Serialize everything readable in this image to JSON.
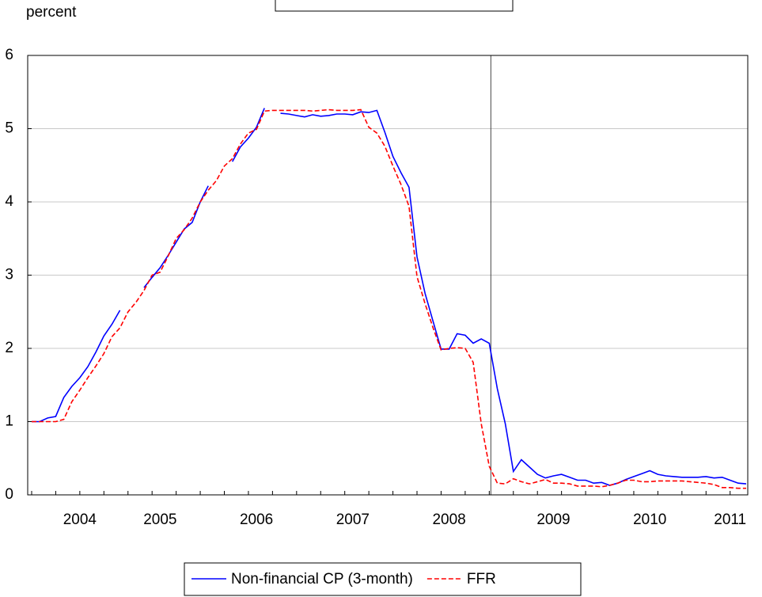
{
  "chart_data": {
    "type": "line",
    "y_label": "percent",
    "categories": [
      null,
      null,
      null,
      null,
      null,
      null,
      "2004",
      null,
      null,
      null,
      null,
      null,
      null,
      null,
      null,
      null,
      "2005",
      null,
      null,
      null,
      null,
      null,
      null,
      null,
      null,
      null,
      null,
      null,
      "2006",
      null,
      null,
      null,
      null,
      null,
      null,
      null,
      null,
      null,
      null,
      null,
      "2007",
      null,
      null,
      null,
      null,
      null,
      null,
      null,
      null,
      null,
      null,
      null,
      "2008",
      null,
      null,
      null,
      null,
      null,
      null,
      null,
      null,
      null,
      null,
      null,
      null,
      "2009",
      null,
      null,
      null,
      null,
      null,
      null,
      null,
      null,
      null,
      null,
      null,
      "2010",
      null,
      null,
      null,
      null,
      null,
      null,
      null,
      null,
      null,
      "2011",
      null,
      null
    ],
    "series": [
      {
        "name": "Non-financial CP (3-month)",
        "color": "#0000ff",
        "dash": false,
        "values": [
          1.0,
          1.0,
          1.05,
          1.07,
          1.33,
          1.48,
          1.6,
          1.75,
          1.95,
          2.17,
          2.33,
          2.52,
          null,
          null,
          2.83,
          2.97,
          3.1,
          3.27,
          3.45,
          3.63,
          3.72,
          4.0,
          4.22,
          null,
          null,
          4.55,
          4.75,
          4.87,
          5.02,
          5.28,
          null,
          5.21,
          5.2,
          5.18,
          5.16,
          5.19,
          5.17,
          5.18,
          5.2,
          5.2,
          5.19,
          5.23,
          5.22,
          5.25,
          4.95,
          4.62,
          4.4,
          4.2,
          3.25,
          2.75,
          2.37,
          1.99,
          1.99,
          2.2,
          2.18,
          2.07,
          2.13,
          2.07,
          1.45,
          0.97,
          0.32,
          0.48,
          0.38,
          0.28,
          0.23,
          0.26,
          0.28,
          0.24,
          0.2,
          0.2,
          0.16,
          0.17,
          0.13,
          0.16,
          0.21,
          0.25,
          0.29,
          0.33,
          0.28,
          0.26,
          0.25,
          0.24,
          0.24,
          0.24,
          0.25,
          0.23,
          0.24,
          0.2,
          0.16,
          0.15
        ]
      },
      {
        "name": "FFR",
        "color": "#ff0000",
        "dash": true,
        "values": [
          1.0,
          1.0,
          1.0,
          1.0,
          1.03,
          1.27,
          1.43,
          1.6,
          1.76,
          1.93,
          2.16,
          2.28,
          2.5,
          2.63,
          2.79,
          3.0,
          3.04,
          3.26,
          3.5,
          3.62,
          3.78,
          4.0,
          4.16,
          4.29,
          4.49,
          4.59,
          4.79,
          4.94,
          4.99,
          5.24,
          5.25,
          5.25,
          5.25,
          5.25,
          5.25,
          5.24,
          5.25,
          5.26,
          5.25,
          5.25,
          5.25,
          5.26,
          5.02,
          4.94,
          4.76,
          4.49,
          4.24,
          3.94,
          2.98,
          2.61,
          2.28,
          1.98,
          2.0,
          2.01,
          2.0,
          1.81,
          0.97,
          0.39,
          0.16,
          0.15,
          0.22,
          0.18,
          0.15,
          0.18,
          0.21,
          0.16,
          0.16,
          0.15,
          0.12,
          0.12,
          0.12,
          0.11,
          0.13,
          0.16,
          0.2,
          0.2,
          0.18,
          0.18,
          0.19,
          0.19,
          0.19,
          0.19,
          0.18,
          0.17,
          0.16,
          0.14,
          0.1,
          0.1,
          0.09,
          0.09
        ]
      }
    ],
    "ylim": [
      0,
      6
    ],
    "yticks": [
      0,
      1,
      2,
      3,
      4,
      5,
      6
    ],
    "grid": true,
    "vline_index": 57,
    "legend": "bottom"
  }
}
